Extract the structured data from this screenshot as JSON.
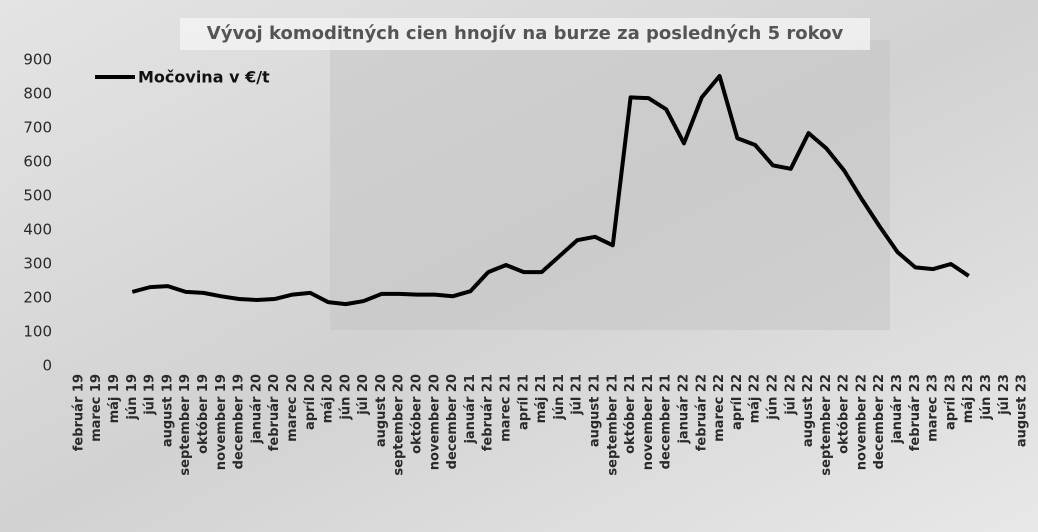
{
  "chart_data": {
    "type": "line",
    "title": "Vývoj komoditných cien hnojív na burze za posledných 5 rokov",
    "categories": [
      "február 19",
      "marec 19",
      "máj 19",
      "jún 19",
      "júl 19",
      "august 19",
      "september 19",
      "október 19",
      "november 19",
      "december 19",
      "január 20",
      "február 20",
      "marec 20",
      "apríl 20",
      "máj 20",
      "jún 20",
      "júl 20",
      "august 20",
      "september 20",
      "október 20",
      "november 20",
      "december 20",
      "január 21",
      "február 21",
      "marec 21",
      "apríl 21",
      "máj 21",
      "jún 21",
      "júl 21",
      "august 21",
      "september 21",
      "október 21",
      "november 21",
      "december 21",
      "január 22",
      "február 22",
      "marec 22",
      "apríl 22",
      "máj 22",
      "jún 22",
      "júl 22",
      "august 22",
      "september 22",
      "október 22",
      "november 22",
      "december 22",
      "január 23",
      "február 23",
      "marec 23",
      "apríl 23",
      "máj 23",
      "jún 23",
      "júl 23",
      "august 23"
    ],
    "series": [
      {
        "name": "Močovina v €/t",
        "color": "#000000",
        "values": [
          null,
          null,
          null,
          218,
          232,
          235,
          218,
          215,
          205,
          197,
          194,
          197,
          210,
          215,
          188,
          182,
          191,
          212,
          212,
          210,
          210,
          205,
          220,
          276,
          297,
          276,
          276,
          323,
          370,
          380,
          355,
          790,
          788,
          755,
          655,
          790,
          853,
          670,
          650,
          590,
          580,
          685,
          640,
          575,
          490,
          410,
          335,
          290,
          285,
          300,
          265,
          null,
          null,
          null
        ]
      }
    ],
    "ylim": [
      0,
      900
    ],
    "yticks": [
      0,
      100,
      200,
      300,
      400,
      500,
      600,
      700,
      800,
      900
    ],
    "legend": "top-left"
  }
}
